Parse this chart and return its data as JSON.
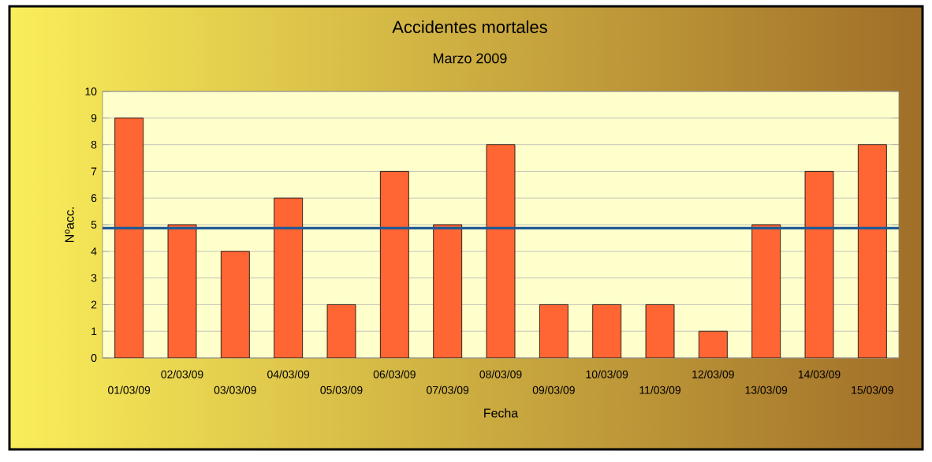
{
  "chart_data": {
    "type": "bar",
    "title": "Accidentes mortales",
    "subtitle": "Marzo 2009",
    "xlabel": "Fecha",
    "ylabel": "Nºacc.",
    "categories": [
      "01/03/09",
      "02/03/09",
      "03/03/09",
      "04/03/09",
      "05/03/09",
      "06/03/09",
      "07/03/09",
      "08/03/09",
      "09/03/09",
      "10/03/09",
      "11/03/09",
      "12/03/09",
      "13/03/09",
      "14/03/09",
      "15/03/09"
    ],
    "values": [
      9,
      5,
      4,
      6,
      2,
      7,
      5,
      8,
      2,
      2,
      2,
      1,
      5,
      7,
      8
    ],
    "color": "#ff6633",
    "ylim": [
      0,
      10
    ],
    "yticks": [
      0,
      1,
      2,
      3,
      4,
      5,
      6,
      7,
      8,
      9,
      10
    ],
    "grid": "y",
    "ref_lines": [
      {
        "axis": "y",
        "value": 4.87,
        "color": "#1f5a96"
      }
    ]
  }
}
